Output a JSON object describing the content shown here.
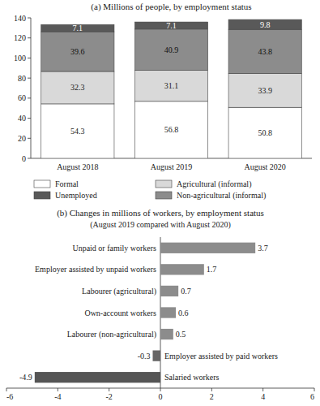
{
  "chart_data": [
    {
      "type": "bar",
      "stacked": true,
      "title": "(a) Millions of people, by employment status",
      "categories": [
        "August 2018",
        "August 2019",
        "August 2020"
      ],
      "series": [
        {
          "name": "Formal",
          "color": "#ffffff",
          "values": [
            54.3,
            56.8,
            50.8
          ]
        },
        {
          "name": "Agricultural (informal)",
          "color": "#d9d9d9",
          "values": [
            32.3,
            31.1,
            33.9
          ]
        },
        {
          "name": "Non-agricultural (informal)",
          "color": "#8c8c8c",
          "values": [
            39.6,
            40.9,
            43.8
          ]
        },
        {
          "name": "Unemployed",
          "color": "#595959",
          "values": [
            7.1,
            7.1,
            9.8
          ]
        }
      ],
      "ylim": [
        0,
        140
      ],
      "yticks": [
        0,
        20,
        40,
        60,
        80,
        100,
        120,
        140
      ],
      "grid": false,
      "data_labels": true,
      "legend": "bottom"
    },
    {
      "type": "bar",
      "orientation": "horizontal",
      "title": "(b) Changes in millions of workers, by employment status",
      "subtitle": "(August 2019 compared with August 2020)",
      "categories": [
        "Unpaid or family workers",
        "Employer assisted by unpaid workers",
        "Labourer (agricultural)",
        "Own-account workers",
        "Labourer (non-agricultural)",
        "Employer assisted by paid workers",
        "Salaried workers"
      ],
      "values": [
        3.7,
        1.7,
        0.7,
        0.6,
        0.5,
        -0.3,
        -4.9
      ],
      "colors": [
        "#8c8c8c",
        "#8c8c8c",
        "#8c8c8c",
        "#8c8c8c",
        "#8c8c8c",
        "#666666",
        "#555555"
      ],
      "xlim": [
        -6,
        6
      ],
      "xticks": [
        -6,
        -4,
        -2,
        0,
        2,
        4,
        6
      ],
      "grid": false,
      "data_labels": true
    }
  ]
}
